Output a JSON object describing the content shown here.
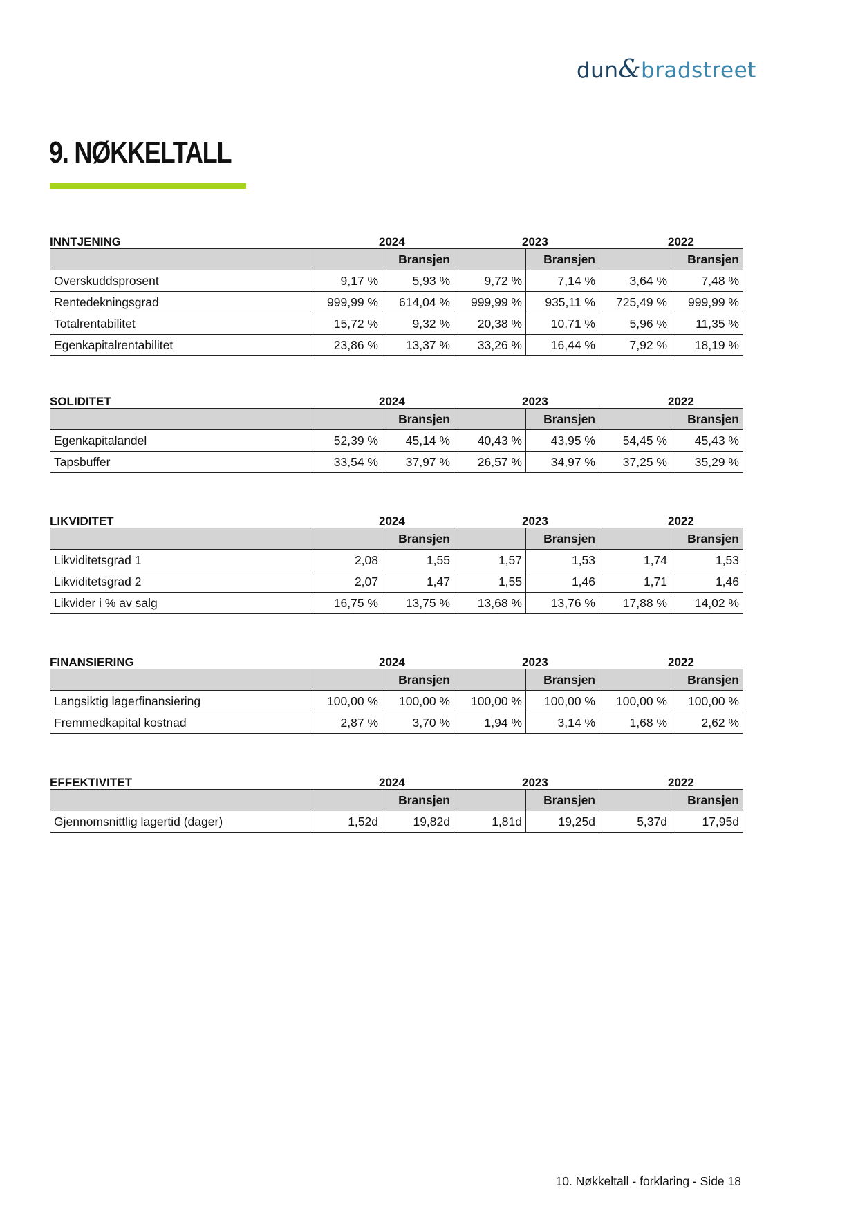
{
  "logo": {
    "part1": "dun",
    "ampersand": "&",
    "part2": "bradstreet"
  },
  "title": "9. NØKKELTALL",
  "colors": {
    "accent": "#a6d41e",
    "header_bg": "#d4d4d4",
    "logo_dark": "#1d4262",
    "logo_blue": "#3b87ad"
  },
  "years": [
    "2024",
    "2023",
    "2022"
  ],
  "industry_label": "Bransjen",
  "sections": [
    {
      "title": "INNTJENING",
      "rows": [
        {
          "label": "Overskuddsprosent",
          "values": [
            "9,17 %",
            "5,93 %",
            "9,72 %",
            "7,14 %",
            "3,64 %",
            "7,48 %"
          ]
        },
        {
          "label": "Rentedekningsgrad",
          "values": [
            "999,99 %",
            "614,04 %",
            "999,99 %",
            "935,11 %",
            "725,49 %",
            "999,99 %"
          ]
        },
        {
          "label": "Totalrentabilitet",
          "values": [
            "15,72 %",
            "9,32 %",
            "20,38 %",
            "10,71 %",
            "5,96 %",
            "11,35 %"
          ]
        },
        {
          "label": "Egenkapitalrentabilitet",
          "values": [
            "23,86 %",
            "13,37 %",
            "33,26 %",
            "16,44 %",
            "7,92 %",
            "18,19 %"
          ]
        }
      ]
    },
    {
      "title": "SOLIDITET",
      "rows": [
        {
          "label": "Egenkapitalandel",
          "values": [
            "52,39 %",
            "45,14 %",
            "40,43 %",
            "43,95 %",
            "54,45 %",
            "45,43 %"
          ]
        },
        {
          "label": "Tapsbuffer",
          "values": [
            "33,54 %",
            "37,97 %",
            "26,57 %",
            "34,97 %",
            "37,25 %",
            "35,29 %"
          ]
        }
      ]
    },
    {
      "title": "LIKVIDITET",
      "rows": [
        {
          "label": "Likviditetsgrad 1",
          "values": [
            "2,08",
            "1,55",
            "1,57",
            "1,53",
            "1,74",
            "1,53"
          ]
        },
        {
          "label": "Likviditetsgrad 2",
          "values": [
            "2,07",
            "1,47",
            "1,55",
            "1,46",
            "1,71",
            "1,46"
          ]
        },
        {
          "label": "Likvider i % av salg",
          "values": [
            "16,75 %",
            "13,75 %",
            "13,68 %",
            "13,76 %",
            "17,88 %",
            "14,02 %"
          ]
        }
      ]
    },
    {
      "title": "FINANSIERING",
      "rows": [
        {
          "label": "Langsiktig lagerfinansiering",
          "values": [
            "100,00 %",
            "100,00 %",
            "100,00 %",
            "100,00 %",
            "100,00 %",
            "100,00 %"
          ]
        },
        {
          "label": "Fremmedkapital kostnad",
          "values": [
            "2,87 %",
            "3,70 %",
            "1,94 %",
            "3,14 %",
            "1,68 %",
            "2,62 %"
          ]
        }
      ]
    },
    {
      "title": "EFFEKTIVITET",
      "rows": [
        {
          "label": "Gjennomsnittlig lagertid (dager)",
          "values": [
            "1,52d",
            "19,82d",
            "1,81d",
            "19,25d",
            "5,37d",
            "17,95d"
          ]
        }
      ]
    }
  ],
  "footer": "10. Nøkkeltall - forklaring - Side 18"
}
